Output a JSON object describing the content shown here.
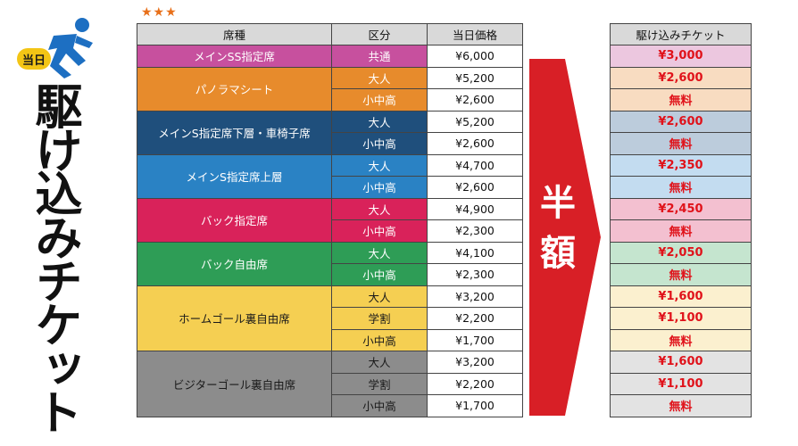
{
  "stars": "★★★",
  "badge": "当日",
  "vertical_title": "駆け込みチケット",
  "arrow_text": "半額",
  "headers": {
    "seat": "席種",
    "cls": "区分",
    "price": "当日価格",
    "rush": "駆け込みチケット"
  },
  "colors": {
    "main_ss": "#c7509e",
    "panorama": "#e78b2c",
    "main_s_lower": "#1f4f7c",
    "main_s_upper": "#2a82c4",
    "back_reserved": "#d9225a",
    "back_free": "#2e9d56",
    "home": "#f5cf52",
    "visitor": "#8c8c8c",
    "arrow": "#d81f26"
  },
  "groups": [
    {
      "seat": "メインSS指定席",
      "color": "#c7509e",
      "rows": [
        {
          "cls": "共通",
          "price": "¥6,000",
          "rush": "¥3,000",
          "rush_bg": "#ecc7df"
        }
      ]
    },
    {
      "seat": "パノラマシート",
      "color": "#e78b2c",
      "rows": [
        {
          "cls": "大人",
          "price": "¥5,200",
          "rush": "¥2,600",
          "rush_bg": "#f8dcc1"
        },
        {
          "cls": "小中高",
          "price": "¥2,600",
          "rush": "無料",
          "rush_bg": "#f8dcc1"
        }
      ]
    },
    {
      "seat": "メインS指定席下層・車椅子席",
      "color": "#1f4f7c",
      "rows": [
        {
          "cls": "大人",
          "price": "¥5,200",
          "rush": "¥2,600",
          "rush_bg": "#bcccdc"
        },
        {
          "cls": "小中高",
          "price": "¥2,600",
          "rush": "無料",
          "rush_bg": "#bcccdc"
        }
      ]
    },
    {
      "seat": "メインS指定席上層",
      "color": "#2a82c4",
      "rows": [
        {
          "cls": "大人",
          "price": "¥4,700",
          "rush": "¥2,350",
          "rush_bg": "#c3dcf0"
        },
        {
          "cls": "小中高",
          "price": "¥2,600",
          "rush": "無料",
          "rush_bg": "#c3dcf0"
        }
      ]
    },
    {
      "seat": "バック指定席",
      "color": "#d9225a",
      "rows": [
        {
          "cls": "大人",
          "price": "¥4,900",
          "rush": "¥2,450",
          "rush_bg": "#f3c0d0"
        },
        {
          "cls": "小中高",
          "price": "¥2,300",
          "rush": "無料",
          "rush_bg": "#f3c0d0"
        }
      ]
    },
    {
      "seat": "バック自由席",
      "color": "#2e9d56",
      "rows": [
        {
          "cls": "大人",
          "price": "¥4,100",
          "rush": "¥2,050",
          "rush_bg": "#c5e5cf"
        },
        {
          "cls": "小中高",
          "price": "¥2,300",
          "rush": "無料",
          "rush_bg": "#c5e5cf"
        }
      ]
    },
    {
      "seat": "ホームゴール裏自由席",
      "color": "#f5cf52",
      "dark": true,
      "rows": [
        {
          "cls": "大人",
          "price": "¥3,200",
          "rush": "¥1,600",
          "rush_bg": "#fbf0cf"
        },
        {
          "cls": "学割",
          "price": "¥2,200",
          "rush": "¥1,100",
          "rush_bg": "#fbf0cf"
        },
        {
          "cls": "小中高",
          "price": "¥1,700",
          "rush": "無料",
          "rush_bg": "#fbf0cf"
        }
      ]
    },
    {
      "seat": "ビジターゴール裏自由席",
      "color": "#8c8c8c",
      "dark": true,
      "rows": [
        {
          "cls": "大人",
          "price": "¥3,200",
          "rush": "¥1,600",
          "rush_bg": "#e3e3e3"
        },
        {
          "cls": "学割",
          "price": "¥2,200",
          "rush": "¥1,100",
          "rush_bg": "#e3e3e3"
        },
        {
          "cls": "小中高",
          "price": "¥1,700",
          "rush": "無料",
          "rush_bg": "#e3e3e3"
        }
      ]
    }
  ]
}
